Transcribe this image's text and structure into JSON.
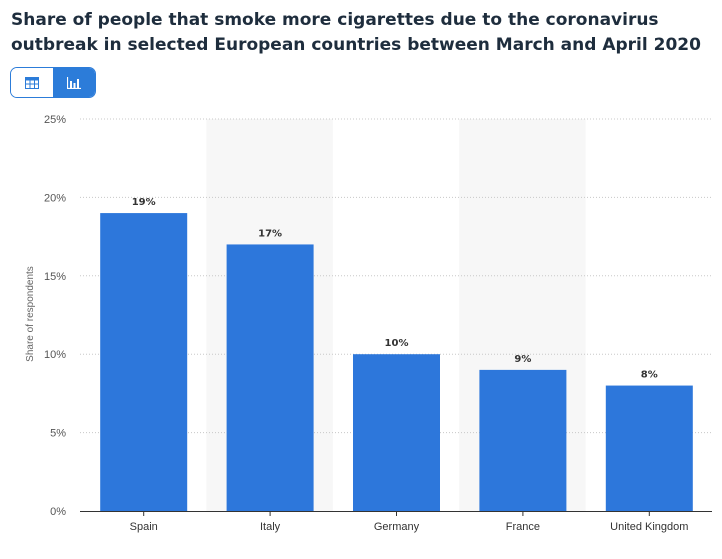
{
  "title": "Share of people that smoke more cigarettes due to the coronavirus outbreak in selected European countries between March and April 2020",
  "toolbar": {
    "table_icon": "table-icon",
    "chart_icon": "bar-chart-icon",
    "active": "chart"
  },
  "colors": {
    "bar": "#2d77db",
    "accent": "#2c7cd9",
    "band": "#f7f7f7"
  },
  "chart_data": {
    "type": "bar",
    "categories": [
      "Spain",
      "Italy",
      "Germany",
      "France",
      "United Kingdom"
    ],
    "values": [
      19,
      17,
      10,
      9,
      8
    ],
    "value_labels": [
      "19%",
      "17%",
      "10%",
      "9%",
      "8%"
    ],
    "ylabel": "Share of respondents",
    "ylim": [
      0,
      25
    ],
    "yticks": [
      0,
      5,
      10,
      15,
      20,
      25
    ],
    "ytick_labels": [
      "0%",
      "5%",
      "10%",
      "15%",
      "20%",
      "25%"
    ],
    "grid": "horizontal dotted",
    "legend": "none"
  }
}
